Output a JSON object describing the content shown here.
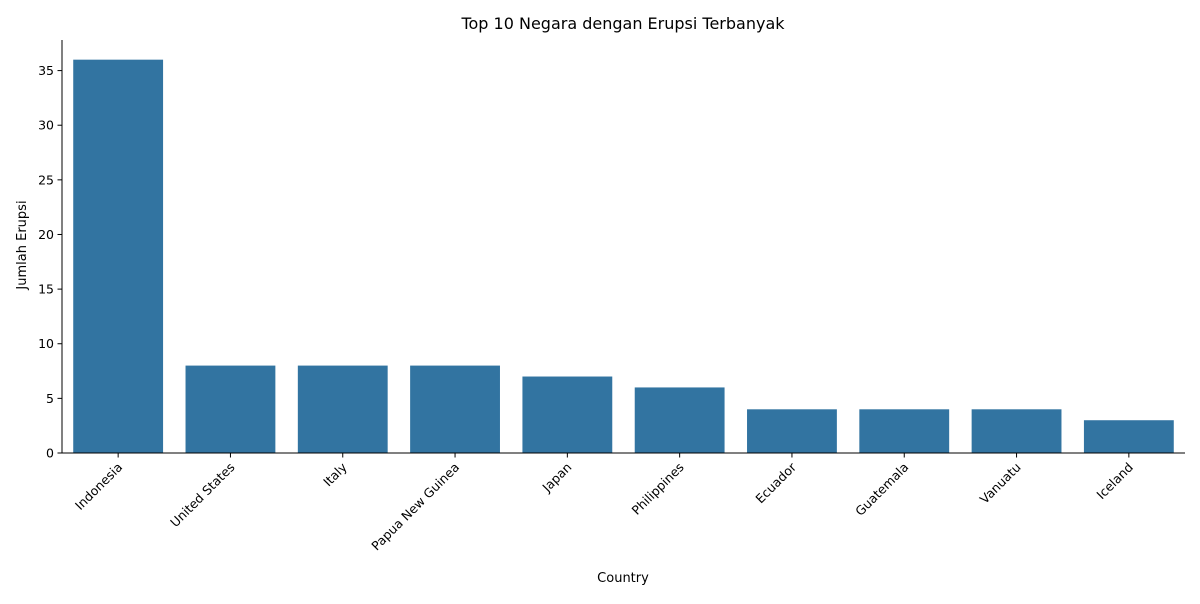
{
  "chart_data": {
    "type": "bar",
    "title": "Top 10 Negara dengan Erupsi Terbanyak",
    "xlabel": "Country",
    "ylabel": "Jumlah Erupsi",
    "categories": [
      "Indonesia",
      "United States",
      "Italy",
      "Papua New Guinea",
      "Japan",
      "Philippines",
      "Ecuador",
      "Guatemala",
      "Vanuatu",
      "Iceland"
    ],
    "values": [
      36,
      8,
      8,
      8,
      7,
      6,
      4,
      4,
      4,
      3
    ],
    "ylim": [
      0,
      37.8
    ],
    "yticks": [
      0,
      5,
      10,
      15,
      20,
      25,
      30,
      35
    ],
    "bar_color": "#3274a1",
    "grid": false,
    "legend": false
  }
}
